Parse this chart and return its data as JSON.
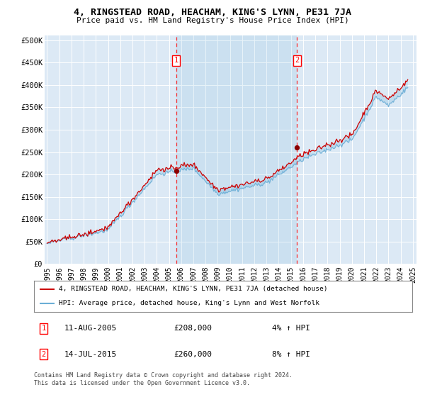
{
  "title": "4, RINGSTEAD ROAD, HEACHAM, KING'S LYNN, PE31 7JA",
  "subtitle": "Price paid vs. HM Land Registry's House Price Index (HPI)",
  "plot_bg_color": "#dce9f5",
  "hpi_color": "#6baed6",
  "price_color": "#cc0000",
  "marker1_year": 2005.58,
  "marker1_price": 208000,
  "marker1_label": "1",
  "marker1_date": "11-AUG-2005",
  "marker1_pct": "4% ↑ HPI",
  "marker2_year": 2015.5,
  "marker2_price": 260000,
  "marker2_label": "2",
  "marker2_date": "14-JUL-2015",
  "marker2_pct": "8% ↑ HPI",
  "ylim": [
    0,
    510000
  ],
  "xlim_start": 1994.8,
  "xlim_end": 2025.3,
  "yticks": [
    0,
    50000,
    100000,
    150000,
    200000,
    250000,
    300000,
    350000,
    400000,
    450000,
    500000
  ],
  "ytick_labels": [
    "£0",
    "£50K",
    "£100K",
    "£150K",
    "£200K",
    "£250K",
    "£300K",
    "£350K",
    "£400K",
    "£450K",
    "£500K"
  ],
  "xticks": [
    1995,
    1996,
    1997,
    1998,
    1999,
    2000,
    2001,
    2002,
    2003,
    2004,
    2005,
    2006,
    2007,
    2008,
    2009,
    2010,
    2011,
    2012,
    2013,
    2014,
    2015,
    2016,
    2017,
    2018,
    2019,
    2020,
    2021,
    2022,
    2023,
    2024,
    2025
  ],
  "legend_line1": "4, RINGSTEAD ROAD, HEACHAM, KING'S LYNN, PE31 7JA (detached house)",
  "legend_line2": "HPI: Average price, detached house, King's Lynn and West Norfolk",
  "footnote": "Contains HM Land Registry data © Crown copyright and database right 2024.\nThis data is licensed under the Open Government Licence v3.0."
}
